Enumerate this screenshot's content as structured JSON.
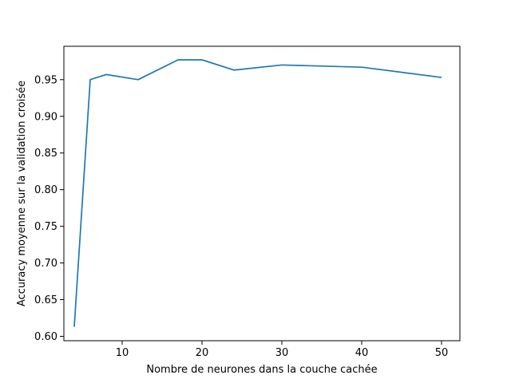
{
  "chart_data": {
    "type": "line",
    "title": "",
    "xlabel": "Nombre de neurones dans la couche cachée",
    "ylabel": "Accuracy moyenne sur la validation croisée",
    "xlim": [
      2.7,
      52.3
    ],
    "ylim": [
      0.594,
      0.9955
    ],
    "x_ticks": [
      10,
      20,
      30,
      40,
      50
    ],
    "x_tick_labels": [
      "10",
      "20",
      "30",
      "40",
      "50"
    ],
    "y_ticks": [
      0.6,
      0.65,
      0.7,
      0.75,
      0.8,
      0.85,
      0.9,
      0.95
    ],
    "y_tick_labels": [
      "0.60",
      "0.65",
      "0.70",
      "0.75",
      "0.80",
      "0.85",
      "0.90",
      "0.95"
    ],
    "grid": false,
    "legend": "none",
    "series": [
      {
        "color": "#1f77b4",
        "x": [
          4,
          6,
          8,
          12,
          17,
          20,
          24,
          30,
          40,
          50
        ],
        "y": [
          0.613,
          0.95,
          0.957,
          0.95,
          0.977,
          0.977,
          0.963,
          0.97,
          0.967,
          0.953
        ]
      }
    ]
  }
}
